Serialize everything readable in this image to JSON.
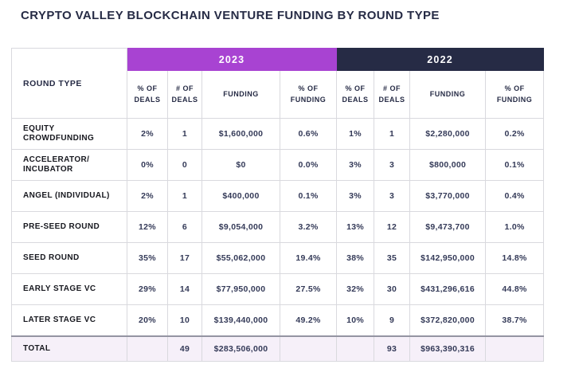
{
  "title": "CRYPTO VALLEY BLOCKCHAIN VENTURE FUNDING BY ROUND TYPE",
  "header": {
    "round_type": "ROUND TYPE",
    "sub_headers": [
      "% OF DEALS",
      "# OF DEALS",
      "FUNDING",
      "% OF FUNDING"
    ]
  },
  "colors": {
    "title_text": "#262b45",
    "year_2023_bg": "#a843d2",
    "year_2022_bg": "#262b45",
    "value_text": "#343a58",
    "grid_border": "#d9d9de",
    "total_row_bg": "#f6f0f9",
    "total_row_top_border": "#9494a2"
  },
  "chart_data": {
    "type": "table",
    "title": "CRYPTO VALLEY BLOCKCHAIN VENTURE FUNDING BY ROUND TYPE",
    "column_groups": [
      "2023",
      "2022"
    ],
    "columns_per_group": [
      "% OF DEALS",
      "# OF DEALS",
      "FUNDING",
      "% OF FUNDING"
    ],
    "column_keys": [
      "pct-deals",
      "num-deals",
      "funding",
      "pct-funding"
    ],
    "rows": [
      {
        "label": "EQUITY CROWDFUNDING",
        "is_total": false,
        "values_2023": [
          "2%",
          "1",
          "$1,600,000",
          "0.6%"
        ],
        "values_2022": [
          "1%",
          "1",
          "$2,280,000",
          "0.2%"
        ]
      },
      {
        "label": "ACCELERATOR/ INCUBATOR",
        "is_total": false,
        "values_2023": [
          "0%",
          "0",
          "$0",
          "0.0%"
        ],
        "values_2022": [
          "3%",
          "3",
          "$800,000",
          "0.1%"
        ]
      },
      {
        "label": "ANGEL (INDIVIDUAL)",
        "is_total": false,
        "values_2023": [
          "2%",
          "1",
          "$400,000",
          "0.1%"
        ],
        "values_2022": [
          "3%",
          "3",
          "$3,770,000",
          "0.4%"
        ]
      },
      {
        "label": "PRE-SEED ROUND",
        "is_total": false,
        "values_2023": [
          "12%",
          "6",
          "$9,054,000",
          "3.2%"
        ],
        "values_2022": [
          "13%",
          "12",
          "$9,473,700",
          "1.0%"
        ]
      },
      {
        "label": "SEED ROUND",
        "is_total": false,
        "values_2023": [
          "35%",
          "17",
          "$55,062,000",
          "19.4%"
        ],
        "values_2022": [
          "38%",
          "35",
          "$142,950,000",
          "14.8%"
        ]
      },
      {
        "label": "EARLY STAGE VC",
        "is_total": false,
        "values_2023": [
          "29%",
          "14",
          "$77,950,000",
          "27.5%"
        ],
        "values_2022": [
          "32%",
          "30",
          "$431,296,616",
          "44.8%"
        ]
      },
      {
        "label": "LATER STAGE VC",
        "is_total": false,
        "values_2023": [
          "20%",
          "10",
          "$139,440,000",
          "49.2%"
        ],
        "values_2022": [
          "10%",
          "9",
          "$372,820,000",
          "38.7%"
        ]
      },
      {
        "label": "TOTAL",
        "is_total": true,
        "values_2023": [
          "",
          "49",
          "$283,506,000",
          ""
        ],
        "values_2022": [
          "",
          "93",
          "$963,390,316",
          ""
        ]
      }
    ]
  }
}
